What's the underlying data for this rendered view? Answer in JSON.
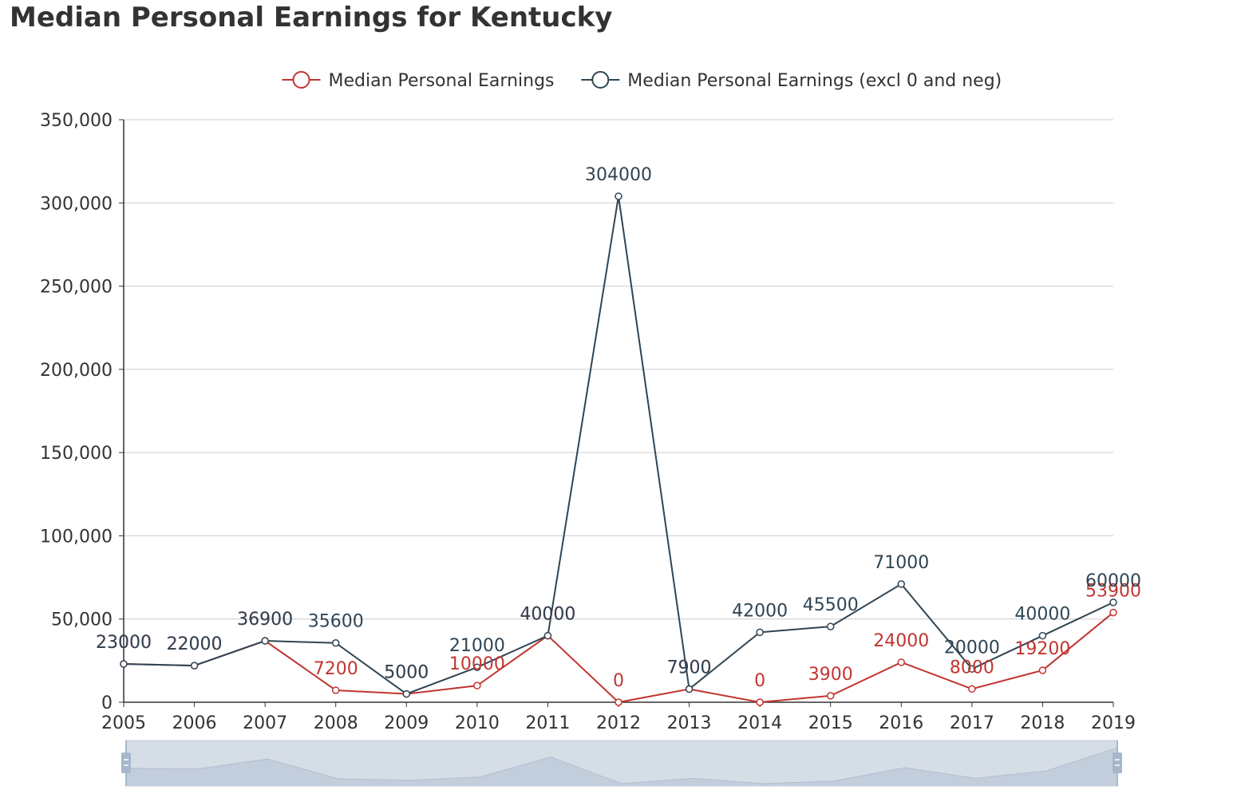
{
  "title": "Median Personal Earnings for Kentucky",
  "colors": {
    "series_primary": "#c23531",
    "series_secondary": "#2f4554",
    "grid": "#cccccc",
    "axis": "#333333",
    "zoom_fill": "#d3dae6",
    "zoom_handle": "#a7b7cc"
  },
  "chart_data": {
    "type": "line",
    "title": "Median Personal Earnings for Kentucky",
    "xlabel": "",
    "ylabel": "",
    "categories": [
      "2005",
      "2006",
      "2007",
      "2008",
      "2009",
      "2010",
      "2011",
      "2012",
      "2013",
      "2014",
      "2015",
      "2016",
      "2017",
      "2018",
      "2019"
    ],
    "ylim": [
      0,
      350000
    ],
    "y_ticks": [
      0,
      50000,
      100000,
      150000,
      200000,
      250000,
      300000,
      350000
    ],
    "y_tick_labels": [
      "0",
      "50,000",
      "100,000",
      "150,000",
      "200,000",
      "250,000",
      "300,000",
      "350,000"
    ],
    "grid": true,
    "legend_position": "top-center",
    "data_zoom_slider": true,
    "series": [
      {
        "name": "Median Personal Earnings",
        "color": "#c23531",
        "values": [
          23000,
          22000,
          36900,
          7200,
          5000,
          10000,
          40000,
          0,
          7900,
          0,
          3900,
          24000,
          8000,
          19200,
          53900
        ]
      },
      {
        "name": "Median Personal Earnings (excl 0 and neg)",
        "color": "#2f4554",
        "values": [
          23000,
          22000,
          36900,
          35600,
          5000,
          21000,
          40000,
          304000,
          7900,
          42000,
          45500,
          71000,
          20000,
          40000,
          60000
        ]
      }
    ]
  }
}
